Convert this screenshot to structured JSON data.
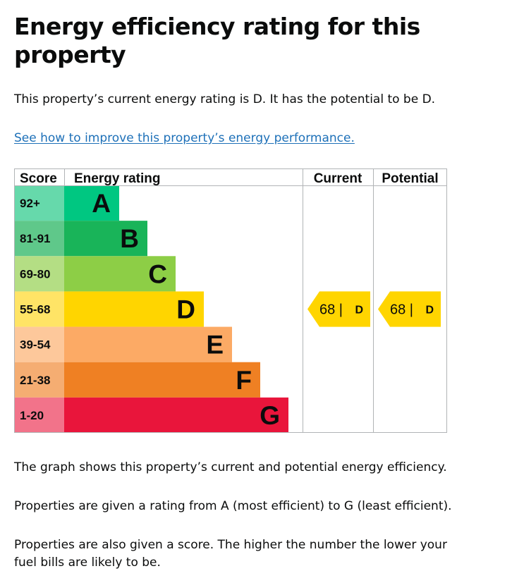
{
  "page": {
    "title": "Energy efficiency rating for this property",
    "intro": "This property’s current energy rating is D. It has the potential to be D.",
    "link_text": "See how to improve this property’s energy performance.",
    "para1": "The graph shows this property’s current and potential energy efficiency.",
    "para2": "Properties are given a rating from A (most efficient) to G (least efficient).",
    "para3": "Properties are also given a score. The higher the number the lower your fuel bills are likely to be."
  },
  "chart_data": {
    "type": "bar",
    "headers": {
      "score": "Score",
      "rating": "Energy rating",
      "current": "Current",
      "potential": "Potential"
    },
    "bands": [
      {
        "letter": "A",
        "range": "92+",
        "color": "#00c781",
        "score_color": "#66d9ab"
      },
      {
        "letter": "B",
        "range": "81-91",
        "color": "#19b459",
        "score_color": "#5fc88a"
      },
      {
        "letter": "C",
        "range": "69-80",
        "color": "#8dce46",
        "score_color": "#b4de84"
      },
      {
        "letter": "D",
        "range": "55-68",
        "color": "#ffd500",
        "score_color": "#ffe466"
      },
      {
        "letter": "E",
        "range": "39-54",
        "color": "#fcaa65",
        "score_color": "#fdc89b"
      },
      {
        "letter": "F",
        "range": "21-38",
        "color": "#ef8023",
        "score_color": "#f5ad72"
      },
      {
        "letter": "G",
        "range": "1-20",
        "color": "#e9153b",
        "score_color": "#f2738a"
      }
    ],
    "current": {
      "score": 68,
      "letter": "D",
      "label": "68 |",
      "color": "#ffd500"
    },
    "potential": {
      "score": 68,
      "letter": "D",
      "label": "68 |",
      "color": "#ffd500"
    }
  }
}
